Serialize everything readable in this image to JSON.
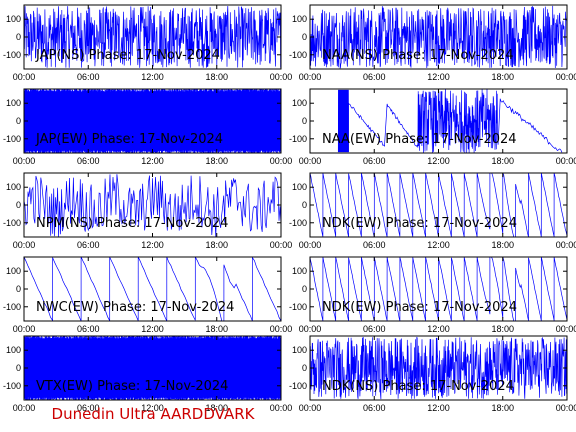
{
  "footer": "Dunedin Ultra AARDDVARK",
  "colors": {
    "trace": "#0000ff",
    "footer": "#cc0000",
    "frame": "#000000"
  },
  "chart_data": [
    {
      "type": "line",
      "title": "JAP(NS) Phase: 17-Nov-2024",
      "ylim": [
        -180,
        180
      ],
      "yticks": [
        "100",
        "0",
        "-100"
      ],
      "xticks": [
        "00:00",
        "06:00",
        "12:00",
        "18:00",
        "00:00"
      ],
      "pattern": "noise",
      "density": "medium"
    },
    {
      "type": "line",
      "title": "NAA(NS) Phase: 17-Nov-2024",
      "ylim": [
        -180,
        180
      ],
      "yticks": [
        "100",
        "0",
        "-100"
      ],
      "xticks": [
        "00:00",
        "06:00",
        "12:00",
        "18:00",
        "00:00"
      ],
      "pattern": "noise",
      "density": "medium"
    },
    {
      "type": "line",
      "title": "JAP(EW) Phase: 17-Nov-2024",
      "ylim": [
        -180,
        180
      ],
      "yticks": [
        "100",
        "0",
        "-100"
      ],
      "xticks": [
        "00:00",
        "06:00",
        "12:00",
        "18:00",
        "00:00"
      ],
      "pattern": "noise",
      "density": "solid"
    },
    {
      "type": "line",
      "title": "NAA(EW) Phase: 17-Nov-2024",
      "ylim": [
        -180,
        180
      ],
      "yticks": [
        "100",
        "0",
        "-100"
      ],
      "xticks": [
        "00:00",
        "06:00",
        "12:00",
        "18:00",
        "00:00"
      ],
      "pattern": "mixed",
      "density": "medium"
    },
    {
      "type": "line",
      "title": "NPM(NS) Phase: 17-Nov-2024",
      "ylim": [
        -180,
        180
      ],
      "yticks": [
        "100",
        "0",
        "-100"
      ],
      "xticks": [
        "00:00",
        "06:00",
        "12:00",
        "18:00",
        "00:00"
      ],
      "pattern": "noise",
      "density": "light"
    },
    {
      "type": "line",
      "title": "NDK(EW) Phase: 17-Nov-2024",
      "ylim": [
        -180,
        180
      ],
      "yticks": [
        "100",
        "0",
        "-100"
      ],
      "xticks": [
        "00:00",
        "06:00",
        "12:00",
        "18:00",
        "00:00"
      ],
      "pattern": "sawtooth",
      "density": "medium"
    },
    {
      "type": "line",
      "title": "NWC(EW) Phase: 17-Nov-2024",
      "ylim": [
        -180,
        180
      ],
      "yticks": [
        "100",
        "0",
        "-100"
      ],
      "xticks": [
        "00:00",
        "06:00",
        "12:00",
        "18:00",
        "00:00"
      ],
      "pattern": "sawtooth",
      "density": "sparse"
    },
    {
      "type": "line",
      "title": "NDK(EW) Phase: 17-Nov-2024",
      "ylim": [
        -180,
        180
      ],
      "yticks": [
        "100",
        "0",
        "-100"
      ],
      "xticks": [
        "00:00",
        "06:00",
        "12:00",
        "18:00",
        "00:00"
      ],
      "pattern": "sawtooth",
      "density": "medium"
    },
    {
      "type": "line",
      "title": "VTX(EW) Phase: 17-Nov-2024",
      "ylim": [
        -180,
        180
      ],
      "yticks": [
        "100",
        "0",
        "-100"
      ],
      "xticks": [
        "00:00",
        "06:00",
        "12:00",
        "18:00",
        "00:00"
      ],
      "pattern": "noise",
      "density": "solid"
    },
    {
      "type": "line",
      "title": "NDK(NS) Phase: 17-Nov-2024",
      "ylim": [
        -180,
        180
      ],
      "yticks": [
        "100",
        "0",
        "-100"
      ],
      "xticks": [
        "00:00",
        "06:00",
        "12:00",
        "18:00",
        "00:00"
      ],
      "pattern": "noise",
      "density": "medium"
    }
  ]
}
